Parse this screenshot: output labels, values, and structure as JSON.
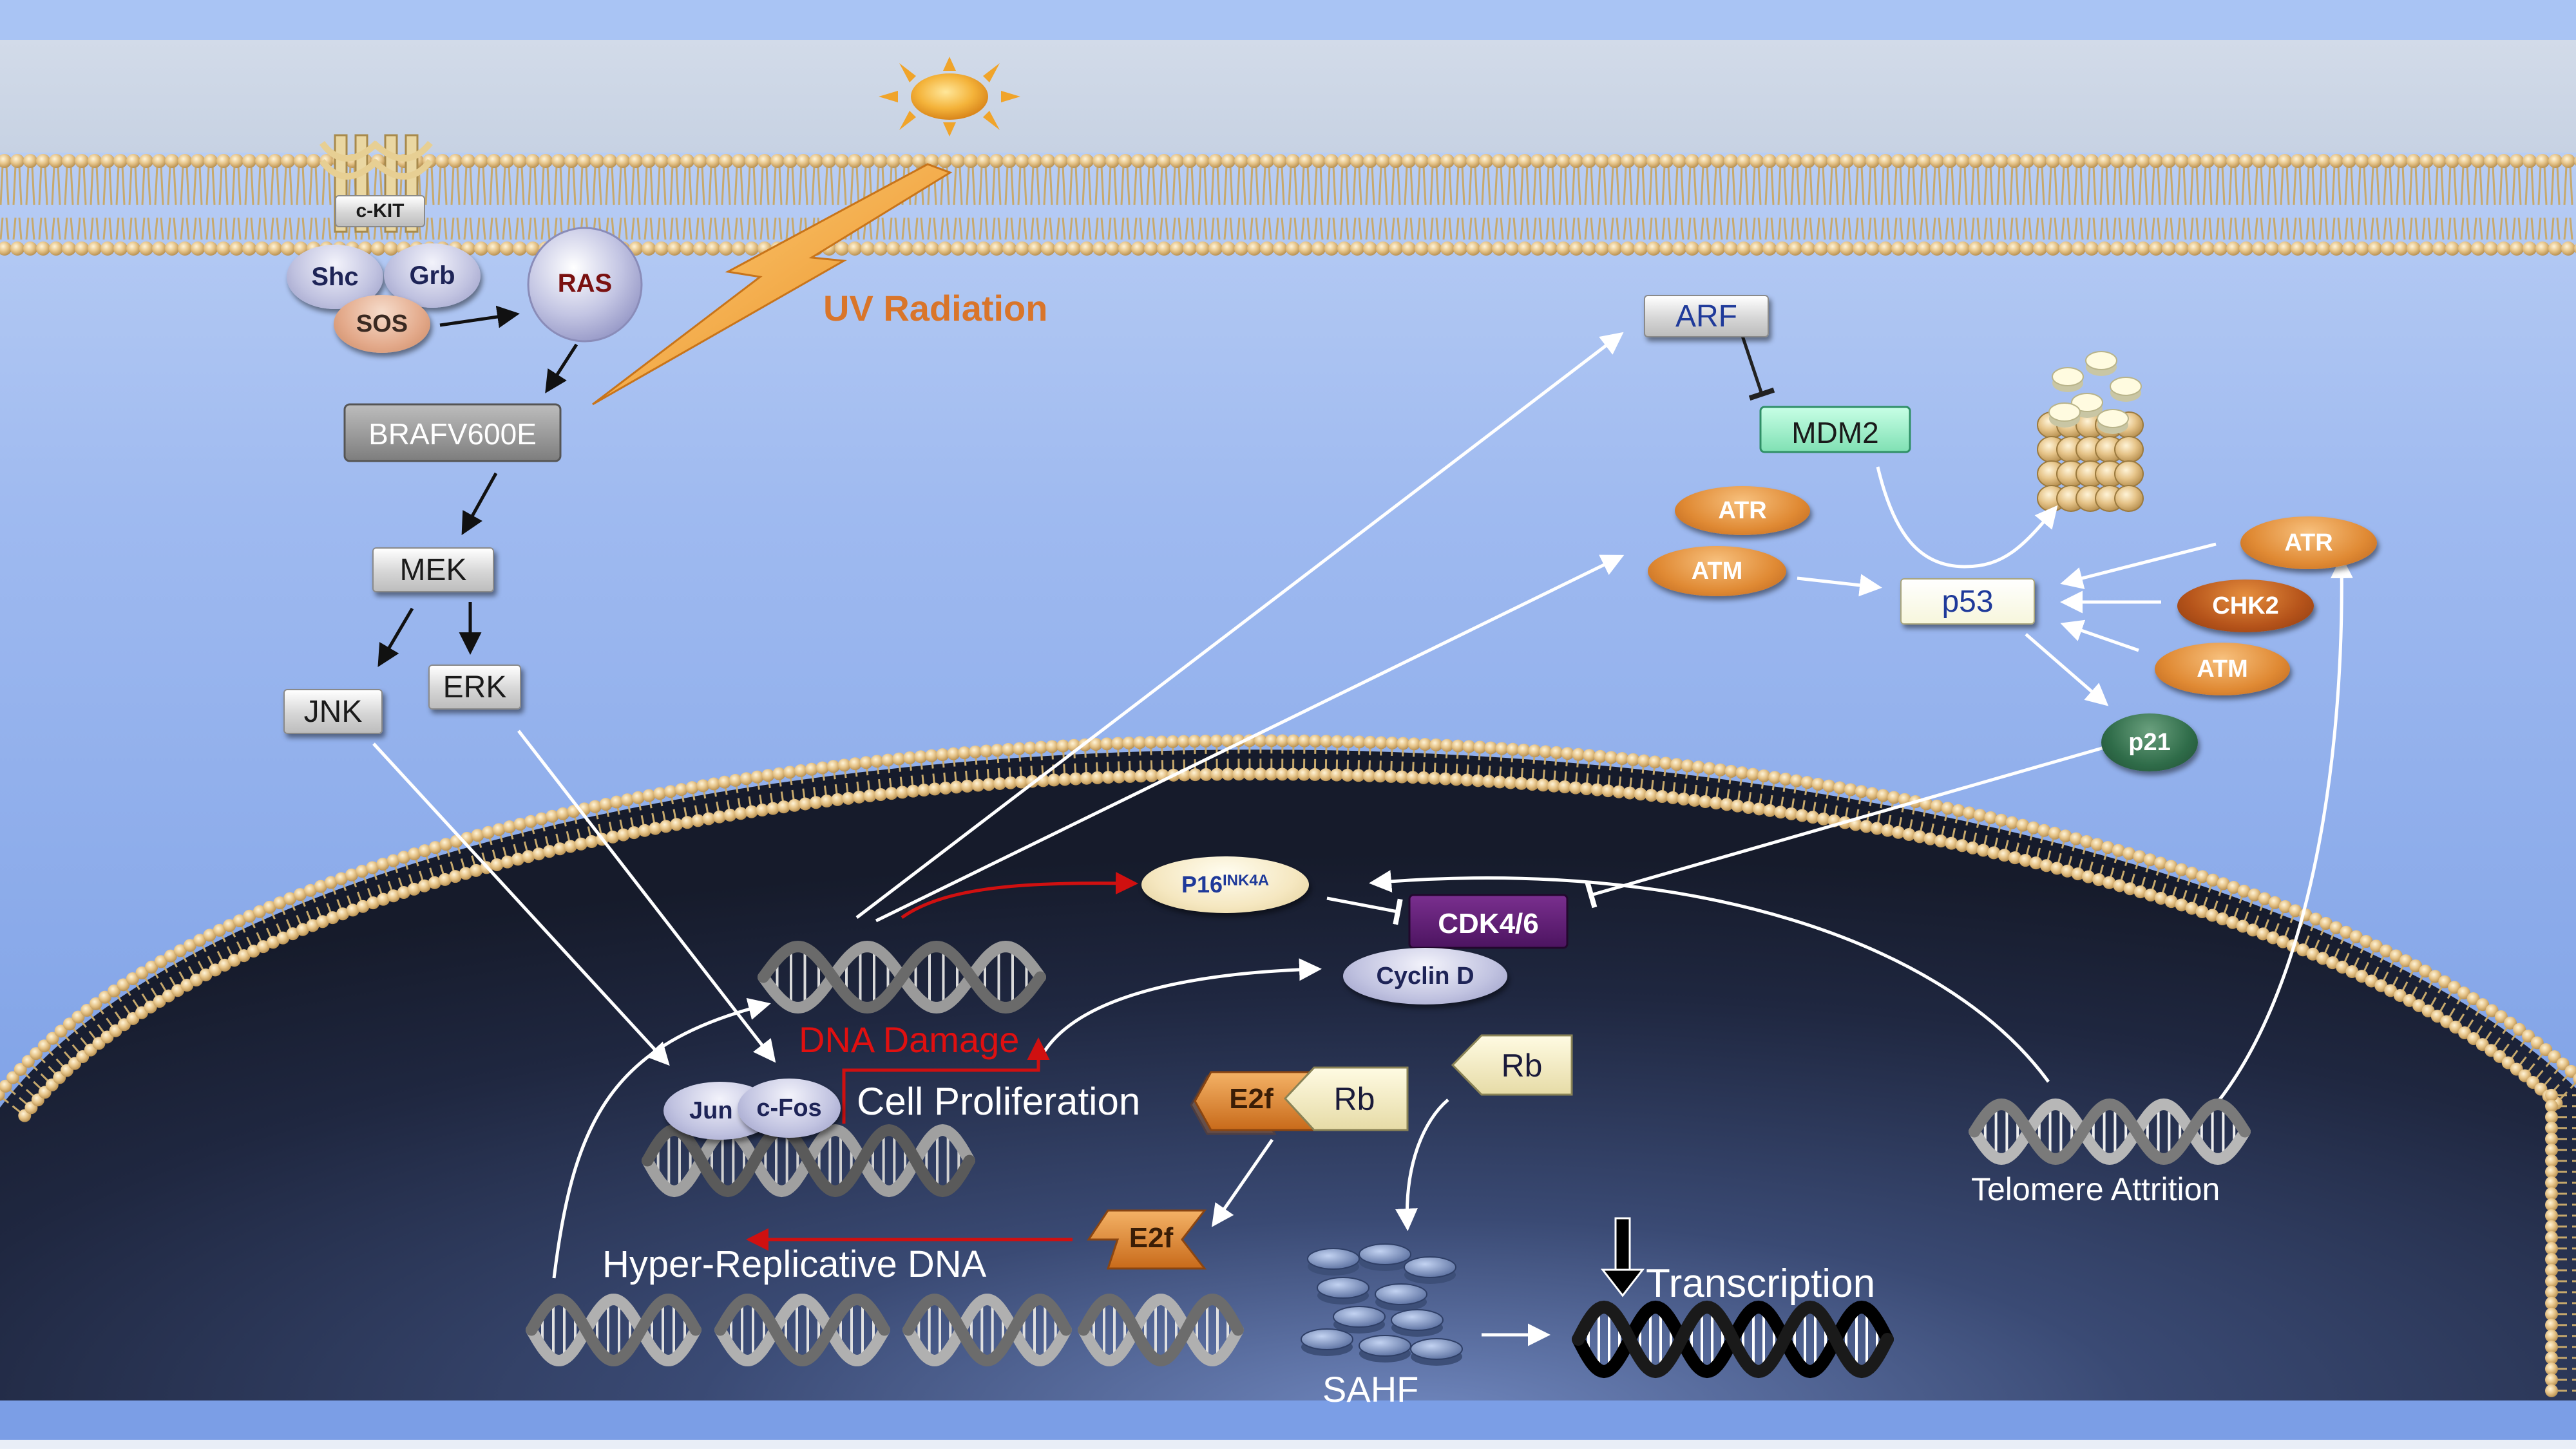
{
  "colors": {
    "background_top": "#b9cff5",
    "background_bottom": "#7a9fe6",
    "nucleus": "#1a2033",
    "membrane": "#e2c48c",
    "arrow": "#ffffff",
    "red_arrow": "#d01010",
    "uv_label": "#d9752a",
    "dna_damage_label": "#e01010"
  },
  "labels": {
    "ckit": "c-KIT",
    "shc": "Shc",
    "grb": "Grb",
    "sos": "SOS",
    "ras": "RAS",
    "braf": "BRAFV600E",
    "mek": "MEK",
    "jnk": "JNK",
    "erk": "ERK",
    "uv": "UV Radiation",
    "arf": "ARF",
    "mdm2": "MDM2",
    "atr_top": "ATR",
    "atm_top": "ATM",
    "p53": "p53",
    "atr_right": "ATR",
    "chk2": "CHK2",
    "atm_right": "ATM",
    "p21": "p21",
    "p16": "P16",
    "p16_sup": "INK4A",
    "cdk46": "CDK4/6",
    "cyclind": "Cyclin D",
    "dna_damage": "DNA Damage",
    "jun": "Jun",
    "cfos": "c-Fos",
    "cell_proliferation": "Cell Proliferation",
    "e2f_top": "E2f",
    "rb_top": "Rb",
    "rb_free": "Rb",
    "hyper_replicative": "Hyper-Replicative DNA",
    "e2f_bottom": "E2f",
    "sahf": "SAHF",
    "transcription": "Transcription",
    "telomere": "Telomere Attrition"
  },
  "icons": [
    "sun-icon",
    "uv-lightning-icon",
    "proteasome-icon",
    "dna-helix-icon",
    "chromatin-icon",
    "down-arrow-icon"
  ]
}
